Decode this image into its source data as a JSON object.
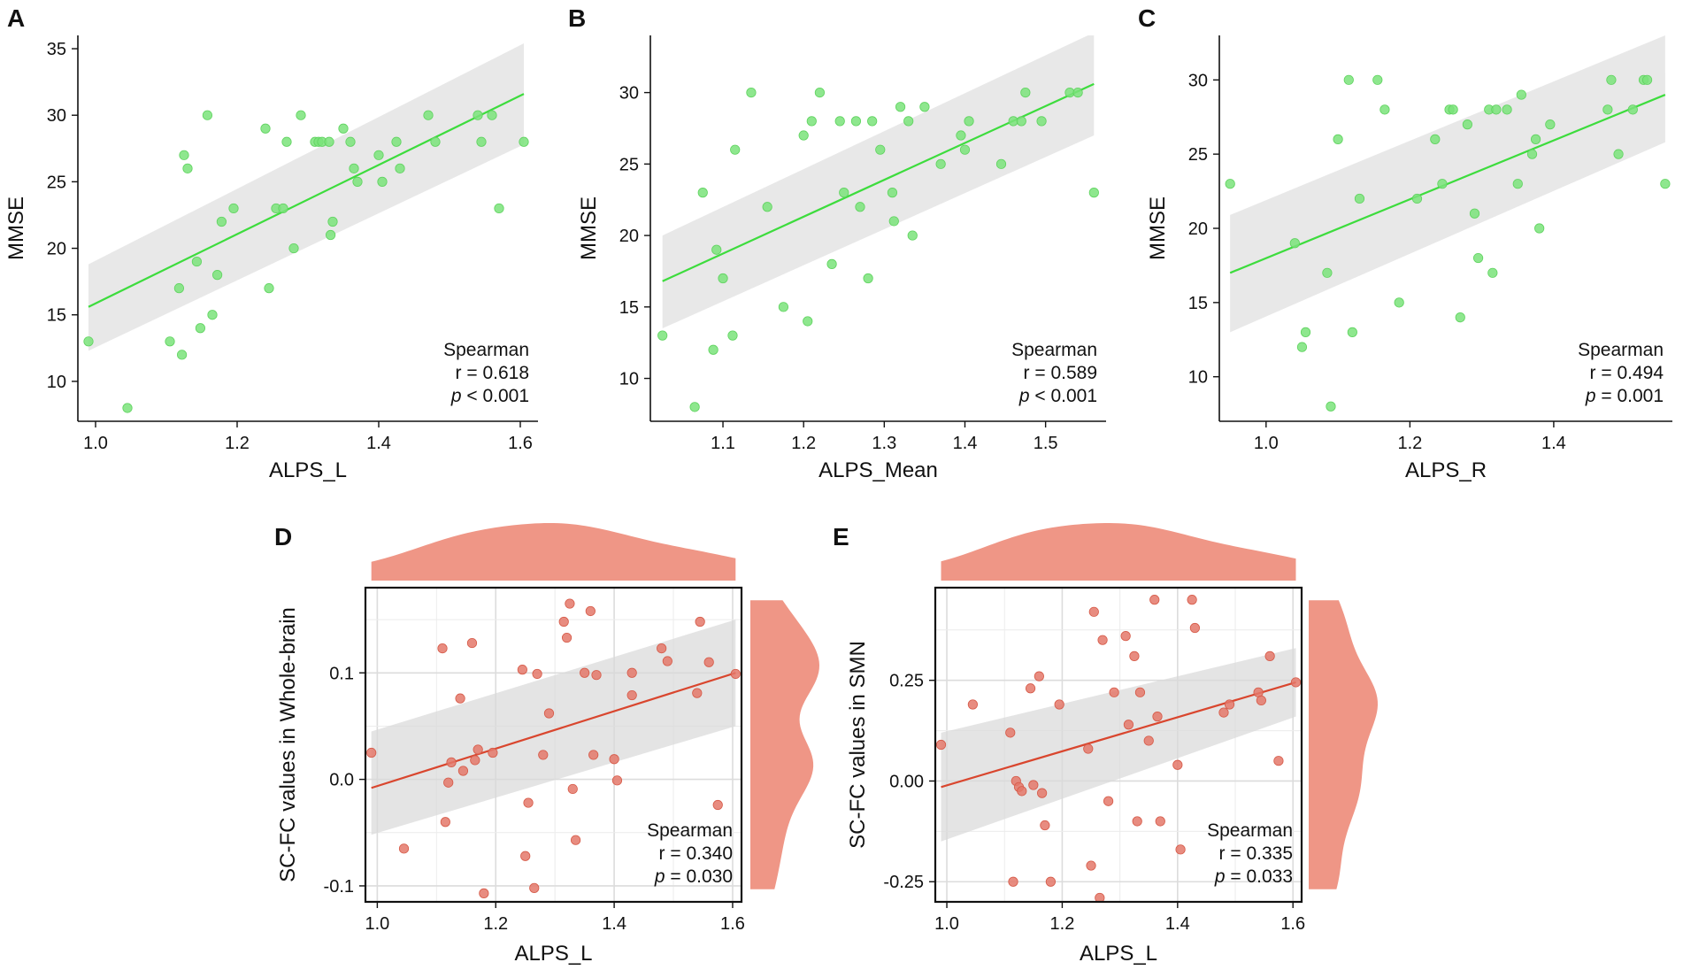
{
  "colors": {
    "green_point": "#7ae37a",
    "green_line": "#3ddc3d",
    "red_point": "#e4786a",
    "red_line": "#d9462e",
    "density_fill": "#ef9686",
    "ci_band": "#d9d9d9"
  },
  "chart_data": [
    {
      "panel": "A",
      "type": "scatter",
      "style": "classic",
      "xlabel": "ALPS_L",
      "ylabel": "MMSE",
      "xlim": [
        0.975,
        1.625
      ],
      "ylim": [
        7,
        36
      ],
      "xticks": [
        1.0,
        1.2,
        1.4,
        1.6
      ],
      "yticks": [
        10,
        15,
        20,
        25,
        30,
        35
      ],
      "xtick_labels": [
        "1.0",
        "1.2",
        "1.4",
        "1.6"
      ],
      "ytick_labels": [
        "10",
        "15",
        "20",
        "25",
        "30",
        "35"
      ],
      "grid": false,
      "x": [
        0.99,
        1.045,
        1.105,
        1.118,
        1.122,
        1.125,
        1.13,
        1.143,
        1.148,
        1.158,
        1.165,
        1.172,
        1.178,
        1.195,
        1.24,
        1.245,
        1.255,
        1.265,
        1.27,
        1.28,
        1.29,
        1.31,
        1.315,
        1.32,
        1.33,
        1.332,
        1.335,
        1.35,
        1.36,
        1.365,
        1.37,
        1.4,
        1.405,
        1.425,
        1.43,
        1.47,
        1.48,
        1.54,
        1.545,
        1.56,
        1.57,
        1.605
      ],
      "y": [
        13,
        8,
        13,
        17,
        12,
        27,
        26,
        19,
        14,
        30,
        15,
        18,
        22,
        23,
        29,
        17,
        23,
        23,
        28,
        20,
        30,
        28,
        28,
        28,
        28,
        21,
        22,
        29,
        28,
        26,
        25,
        27,
        25,
        28,
        26,
        30,
        28,
        30,
        28,
        30,
        23,
        28
      ],
      "fit": {
        "x": [
          0.99,
          1.605
        ],
        "y": [
          15.6,
          31.6
        ]
      },
      "ci_upper": [
        18.8,
        35.4
      ],
      "ci_lower": [
        12.3,
        27.8
      ],
      "stats": {
        "method": "Spearman",
        "r": "r = 0.618",
        "p_label": "p",
        "p_rest": " < 0.001"
      }
    },
    {
      "panel": "B",
      "type": "scatter",
      "style": "classic",
      "xlabel": "ALPS_Mean",
      "ylabel": "MMSE",
      "xlim": [
        1.01,
        1.575
      ],
      "ylim": [
        7,
        34
      ],
      "xticks": [
        1.1,
        1.2,
        1.3,
        1.4,
        1.5
      ],
      "yticks": [
        10,
        15,
        20,
        25,
        30
      ],
      "xtick_labels": [
        "1.1",
        "1.2",
        "1.3",
        "1.4",
        "1.5"
      ],
      "ytick_labels": [
        "10",
        "15",
        "20",
        "25",
        "30"
      ],
      "grid": false,
      "x": [
        1.025,
        1.065,
        1.075,
        1.088,
        1.092,
        1.1,
        1.112,
        1.115,
        1.135,
        1.155,
        1.175,
        1.2,
        1.205,
        1.21,
        1.22,
        1.235,
        1.245,
        1.25,
        1.265,
        1.27,
        1.28,
        1.285,
        1.295,
        1.31,
        1.312,
        1.32,
        1.33,
        1.335,
        1.35,
        1.37,
        1.395,
        1.4,
        1.405,
        1.445,
        1.46,
        1.47,
        1.475,
        1.495,
        1.53,
        1.54,
        1.56
      ],
      "y": [
        13,
        8,
        23,
        12,
        19,
        17,
        13,
        26,
        30,
        22,
        15,
        27,
        14,
        28,
        30,
        18,
        28,
        23,
        28,
        22,
        17,
        28,
        26,
        23,
        21,
        29,
        28,
        20,
        29,
        25,
        27,
        26,
        28,
        25,
        28,
        28,
        30,
        28,
        30,
        30,
        23
      ],
      "fit": {
        "x": [
          1.025,
          1.56
        ],
        "y": [
          16.8,
          30.6
        ]
      },
      "ci_upper": [
        20.0,
        34.2
      ],
      "ci_lower": [
        13.5,
        27.0
      ],
      "stats": {
        "method": "Spearman",
        "r": "r = 0.589",
        "p_label": "p",
        "p_rest": " < 0.001"
      }
    },
    {
      "panel": "C",
      "type": "scatter",
      "style": "classic",
      "xlabel": "ALPS_R",
      "ylabel": "MMSE",
      "xlim": [
        0.935,
        1.565
      ],
      "ylim": [
        7,
        33
      ],
      "xticks": [
        1.0,
        1.2,
        1.4
      ],
      "yticks": [
        10,
        15,
        20,
        25,
        30
      ],
      "xtick_labels": [
        "1.0",
        "1.2",
        "1.4"
      ],
      "ytick_labels": [
        "10",
        "15",
        "20",
        "25",
        "30"
      ],
      "grid": false,
      "x": [
        0.95,
        1.04,
        1.05,
        1.055,
        1.085,
        1.09,
        1.1,
        1.115,
        1.12,
        1.13,
        1.155,
        1.165,
        1.185,
        1.21,
        1.235,
        1.245,
        1.255,
        1.26,
        1.27,
        1.28,
        1.29,
        1.295,
        1.31,
        1.315,
        1.32,
        1.335,
        1.35,
        1.355,
        1.37,
        1.375,
        1.38,
        1.395,
        1.475,
        1.48,
        1.49,
        1.51,
        1.525,
        1.53,
        1.555
      ],
      "y": [
        23,
        19,
        12,
        13,
        17,
        8,
        26,
        30,
        13,
        22,
        30,
        28,
        15,
        22,
        26,
        23,
        28,
        28,
        14,
        27,
        21,
        18,
        28,
        17,
        28,
        28,
        23,
        29,
        25,
        26,
        20,
        27,
        28,
        30,
        25,
        28,
        30,
        30,
        23
      ],
      "fit": {
        "x": [
          0.95,
          1.555
        ],
        "y": [
          17.0,
          29.0
        ]
      },
      "ci_upper": [
        20.9,
        33.0
      ],
      "ci_lower": [
        13.0,
        25.8
      ],
      "stats": {
        "method": "Spearman",
        "r": "r = 0.494",
        "p_label": "p",
        "p_rest": " = 0.001"
      }
    },
    {
      "panel": "D",
      "type": "scatter",
      "style": "grid-with-marginal-density",
      "xlabel": "ALPS_L",
      "ylabel": "SC-FC values in Whole-brain",
      "xlim": [
        0.98,
        1.615
      ],
      "ylim": [
        -0.115,
        0.18
      ],
      "xticks": [
        1.0,
        1.2,
        1.4,
        1.6
      ],
      "yticks": [
        -0.1,
        0.0,
        0.1
      ],
      "xtick_labels": [
        "1.0",
        "1.2",
        "1.4",
        "1.6"
      ],
      "ytick_labels": [
        "-0.1",
        "0.0",
        "0.1"
      ],
      "grid": true,
      "x": [
        0.99,
        1.045,
        1.11,
        1.115,
        1.12,
        1.125,
        1.14,
        1.145,
        1.16,
        1.165,
        1.17,
        1.18,
        1.195,
        1.245,
        1.25,
        1.255,
        1.265,
        1.27,
        1.28,
        1.29,
        1.315,
        1.32,
        1.325,
        1.33,
        1.335,
        1.35,
        1.36,
        1.365,
        1.37,
        1.4,
        1.405,
        1.43,
        1.43,
        1.48,
        1.49,
        1.54,
        1.545,
        1.56,
        1.575,
        1.605
      ],
      "y": [
        0.025,
        -0.065,
        0.123,
        -0.04,
        -0.003,
        0.016,
        0.076,
        0.008,
        0.128,
        0.018,
        0.028,
        -0.107,
        0.025,
        0.103,
        -0.072,
        -0.022,
        -0.102,
        0.099,
        0.023,
        0.062,
        0.148,
        0.133,
        0.165,
        -0.009,
        -0.057,
        0.1,
        0.158,
        0.023,
        0.098,
        0.019,
        -0.001,
        0.079,
        0.1,
        0.123,
        0.111,
        0.081,
        0.148,
        0.11,
        -0.024,
        0.099
      ],
      "fit": {
        "x": [
          0.99,
          1.605
        ],
        "y": [
          -0.008,
          0.1
        ]
      },
      "ci_upper": [
        0.045,
        0.15
      ],
      "ci_lower": [
        -0.052,
        0.05
      ],
      "stats": {
        "method": "Spearman",
        "r": "r = 0.340",
        "p_label": "p",
        "p_rest": " = 0.030"
      }
    },
    {
      "panel": "E",
      "type": "scatter",
      "style": "grid-with-marginal-density",
      "xlabel": "ALPS_L",
      "ylabel": "SC-FC values in SMN",
      "xlim": [
        0.98,
        1.615
      ],
      "ylim": [
        -0.3,
        0.48
      ],
      "xticks": [
        1.0,
        1.2,
        1.4,
        1.6
      ],
      "yticks": [
        -0.25,
        0.0,
        0.25
      ],
      "xtick_labels": [
        "1.0",
        "1.2",
        "1.4",
        "1.6"
      ],
      "ytick_labels": [
        "-0.25",
        "0.00",
        "0.25"
      ],
      "grid": true,
      "x": [
        0.99,
        1.045,
        1.11,
        1.115,
        1.12,
        1.125,
        1.13,
        1.145,
        1.15,
        1.16,
        1.165,
        1.17,
        1.18,
        1.195,
        1.245,
        1.25,
        1.255,
        1.265,
        1.27,
        1.28,
        1.29,
        1.31,
        1.315,
        1.325,
        1.33,
        1.335,
        1.35,
        1.36,
        1.365,
        1.37,
        1.4,
        1.405,
        1.425,
        1.43,
        1.48,
        1.49,
        1.54,
        1.545,
        1.56,
        1.575,
        1.605
      ],
      "y": [
        0.09,
        0.19,
        0.12,
        -0.25,
        0.0,
        -0.015,
        -0.025,
        0.23,
        -0.01,
        0.26,
        -0.03,
        -0.11,
        -0.25,
        0.19,
        0.08,
        -0.21,
        0.42,
        -0.29,
        0.35,
        -0.05,
        0.22,
        0.36,
        0.14,
        0.31,
        -0.1,
        0.22,
        0.1,
        0.45,
        0.16,
        -0.1,
        0.04,
        -0.17,
        0.45,
        0.38,
        0.17,
        0.19,
        0.22,
        0.2,
        0.31,
        0.05,
        0.245
      ],
      "fit": {
        "x": [
          0.99,
          1.605
        ],
        "y": [
          -0.015,
          0.245
        ]
      },
      "ci_upper": [
        0.12,
        0.33
      ],
      "ci_lower": [
        -0.15,
        0.16
      ],
      "stats": {
        "method": "Spearman",
        "r": "r = 0.335",
        "p_label": "p",
        "p_rest": " = 0.033"
      }
    }
  ]
}
